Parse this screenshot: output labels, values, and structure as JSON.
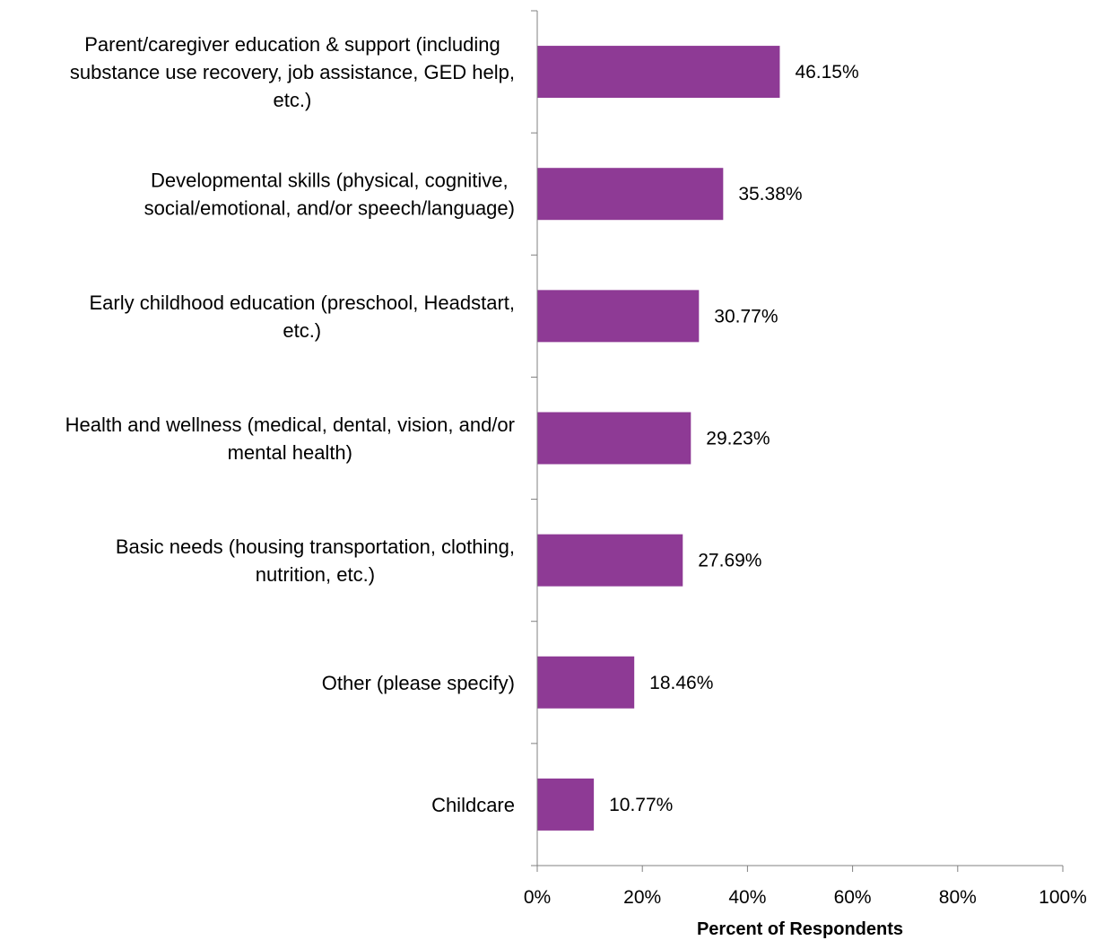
{
  "chart_data": {
    "type": "bar",
    "orientation": "horizontal",
    "title": "",
    "xlabel": "Percent of Respondents",
    "ylabel": "",
    "xlim": [
      0,
      100
    ],
    "grid": false,
    "legend": "none",
    "bar_color": "#8E3A95",
    "x_ticks": [
      "0%",
      "20%",
      "40%",
      "60%",
      "80%",
      "100%"
    ],
    "x_tick_values": [
      0,
      20,
      40,
      60,
      80,
      100
    ],
    "categories": [
      {
        "name": "Parent/caregiver education & support (including substance use recovery, job assistance, GED help, etc.)",
        "lines": [
          "Parent/caregiver education & support (including",
          "substance use recovery, job assistance, GED help,",
          "etc.)"
        ]
      },
      {
        "name": "Developmental skills (physical, cognitive, social/emotional, and/or speech/language)",
        "lines": [
          "Developmental skills (physical, cognitive,",
          "social/emotional, and/or speech/language)"
        ]
      },
      {
        "name": "Early childhood education (preschool, Headstart, etc.)",
        "lines": [
          "Early childhood education (preschool, Headstart,",
          "etc.)"
        ]
      },
      {
        "name": "Health and wellness (medical, dental, vision, and/or mental health)",
        "lines": [
          "Health and wellness (medical, dental, vision, and/or",
          "mental health)"
        ]
      },
      {
        "name": "Basic needs (housing transportation, clothing, nutrition, etc.)",
        "lines": [
          "Basic needs (housing transportation, clothing,",
          "nutrition, etc.)"
        ]
      },
      {
        "name": "Other (please specify)",
        "lines": [
          "Other (please specify)"
        ]
      },
      {
        "name": "Childcare",
        "lines": [
          "Childcare"
        ]
      }
    ],
    "values": [
      46.15,
      35.38,
      30.77,
      29.23,
      27.69,
      18.46,
      10.77
    ],
    "data_labels": [
      "46.15%",
      "35.38%",
      "30.77%",
      "29.23%",
      "27.69%",
      "18.46%",
      "10.77%"
    ]
  }
}
